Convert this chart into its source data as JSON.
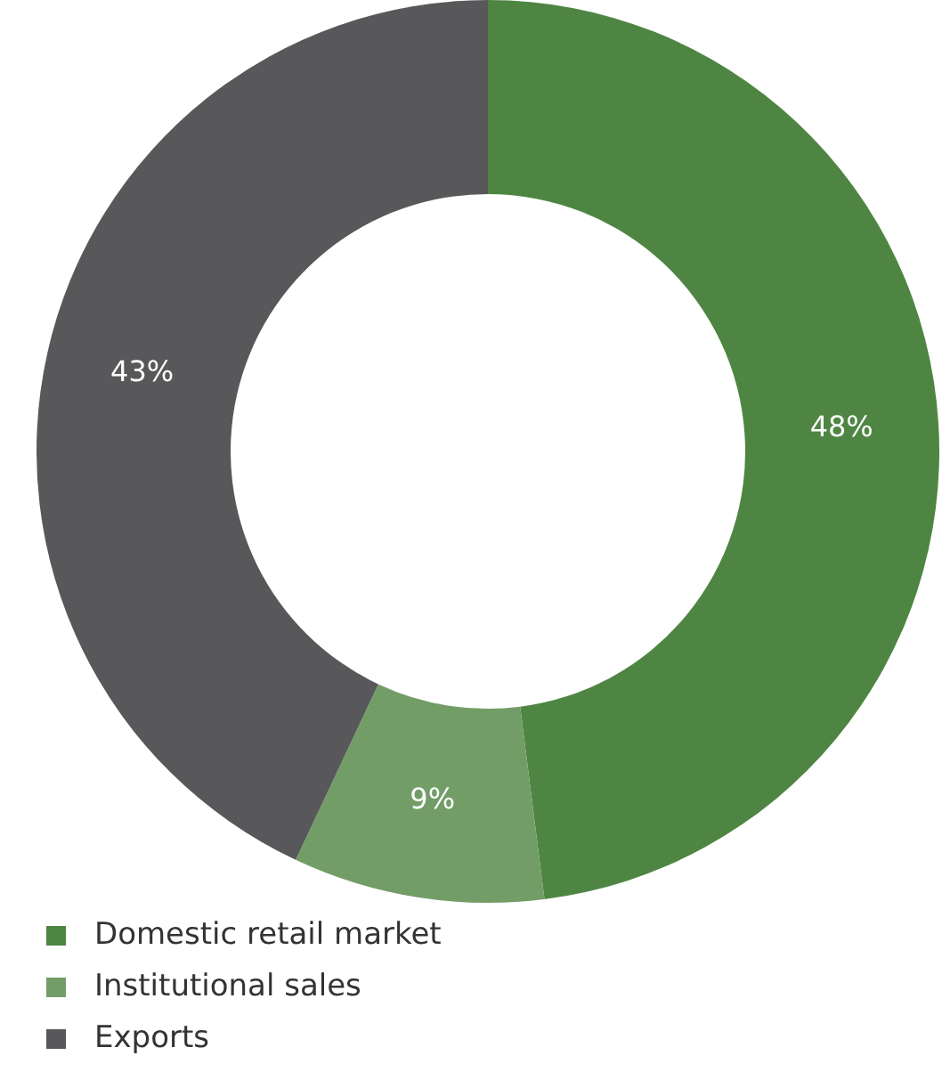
{
  "chart_data": {
    "type": "donut",
    "categories": [
      "Domestic retail market",
      "Institutional sales",
      "Exports"
    ],
    "values": [
      48,
      9,
      43
    ],
    "colors": [
      "#4e8542",
      "#729d67",
      "#58585a"
    ],
    "value_labels": [
      "48%",
      "9%",
      "43%"
    ],
    "legend": "bottom left"
  }
}
